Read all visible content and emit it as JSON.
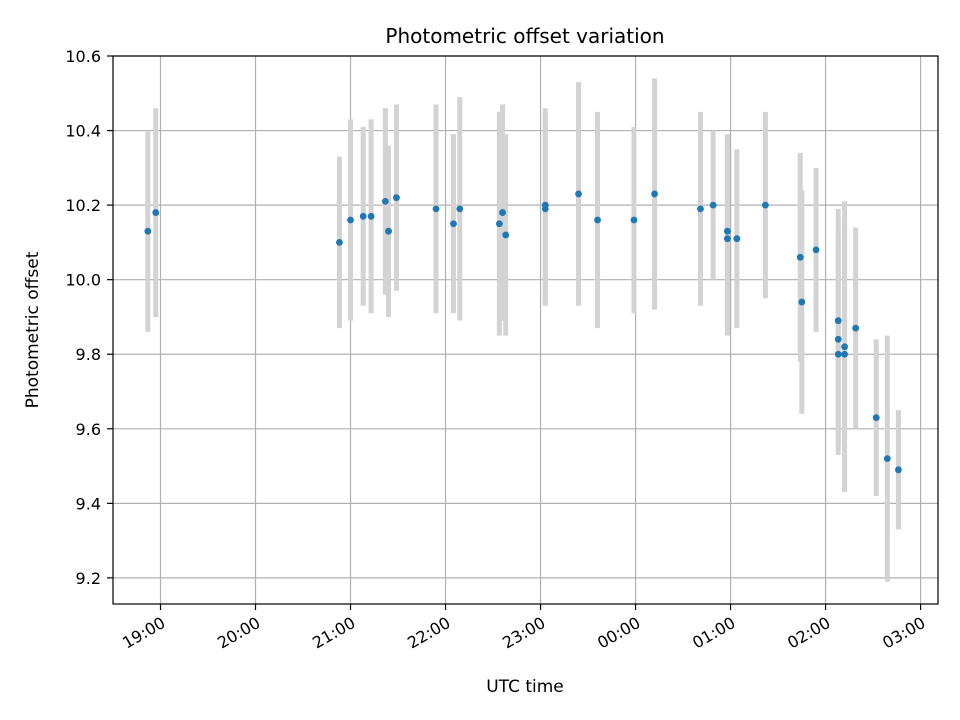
{
  "chart_data": {
    "type": "scatter",
    "title": "Photometric offset variation",
    "xlabel": "UTC time",
    "ylabel": "Photometric offset",
    "xlim": [
      "18:30",
      "03:11"
    ],
    "ylim": [
      9.13,
      10.6
    ],
    "x_ticks": [
      "19:00",
      "20:00",
      "21:00",
      "22:00",
      "23:00",
      "00:00",
      "01:00",
      "02:00",
      "03:00"
    ],
    "y_ticks": [
      "9.2",
      "9.4",
      "9.6",
      "9.8",
      "10.0",
      "10.2",
      "10.4",
      "10.6"
    ],
    "grid": true,
    "colors": {
      "marker": "#1f77b4",
      "errorbar": "#d3d3d3",
      "grid": "#b0b0b0",
      "axes": "#000000"
    },
    "points": [
      {
        "t": "18:52",
        "y": 10.13,
        "err": 0.27
      },
      {
        "t": "18:57",
        "y": 10.18,
        "err": 0.28
      },
      {
        "t": "20:53",
        "y": 10.1,
        "err": 0.23
      },
      {
        "t": "21:00",
        "y": 10.16,
        "err": 0.27
      },
      {
        "t": "21:08",
        "y": 10.17,
        "err": 0.24
      },
      {
        "t": "21:13",
        "y": 10.17,
        "err": 0.26
      },
      {
        "t": "21:22",
        "y": 10.21,
        "err": 0.25
      },
      {
        "t": "21:24",
        "y": 10.13,
        "err": 0.23
      },
      {
        "t": "21:29",
        "y": 10.22,
        "err": 0.25
      },
      {
        "t": "21:54",
        "y": 10.19,
        "err": 0.28
      },
      {
        "t": "22:05",
        "y": 10.15,
        "err": 0.24
      },
      {
        "t": "22:09",
        "y": 10.19,
        "err": 0.3
      },
      {
        "t": "22:34",
        "y": 10.15,
        "err": 0.3
      },
      {
        "t": "22:36",
        "y": 10.18,
        "err": 0.29
      },
      {
        "t": "22:38",
        "y": 10.12,
        "err": 0.27
      },
      {
        "t": "23:03",
        "y": 10.19,
        "err": 0.26
      },
      {
        "t": "23:03",
        "y": 10.2,
        "err": 0.26
      },
      {
        "t": "23:24",
        "y": 10.23,
        "err": 0.3
      },
      {
        "t": "23:36",
        "y": 10.16,
        "err": 0.29
      },
      {
        "t": "23:59",
        "y": 10.16,
        "err": 0.25
      },
      {
        "t": "00:12",
        "y": 10.23,
        "err": 0.31
      },
      {
        "t": "00:41",
        "y": 10.19,
        "err": 0.26
      },
      {
        "t": "00:49",
        "y": 10.2,
        "err": 0.2
      },
      {
        "t": "00:58",
        "y": 10.13,
        "err": 0.26
      },
      {
        "t": "00:58",
        "y": 10.11,
        "err": 0.26
      },
      {
        "t": "01:04",
        "y": 10.11,
        "err": 0.24
      },
      {
        "t": "01:22",
        "y": 10.2,
        "err": 0.25
      },
      {
        "t": "01:44",
        "y": 10.06,
        "err": 0.28
      },
      {
        "t": "01:45",
        "y": 9.94,
        "err": 0.3
      },
      {
        "t": "01:54",
        "y": 10.08,
        "err": 0.22
      },
      {
        "t": "02:08",
        "y": 9.89,
        "err": 0.3
      },
      {
        "t": "02:08",
        "y": 9.84,
        "err": 0.28
      },
      {
        "t": "02:08",
        "y": 9.8,
        "err": 0.27
      },
      {
        "t": "02:12",
        "y": 9.82,
        "err": 0.39
      },
      {
        "t": "02:12",
        "y": 9.8,
        "err": 0.36
      },
      {
        "t": "02:19",
        "y": 9.87,
        "err": 0.27
      },
      {
        "t": "02:32",
        "y": 9.63,
        "err": 0.21
      },
      {
        "t": "02:39",
        "y": 9.52,
        "err": 0.33
      },
      {
        "t": "02:46",
        "y": 9.49,
        "err": 0.16
      }
    ]
  }
}
